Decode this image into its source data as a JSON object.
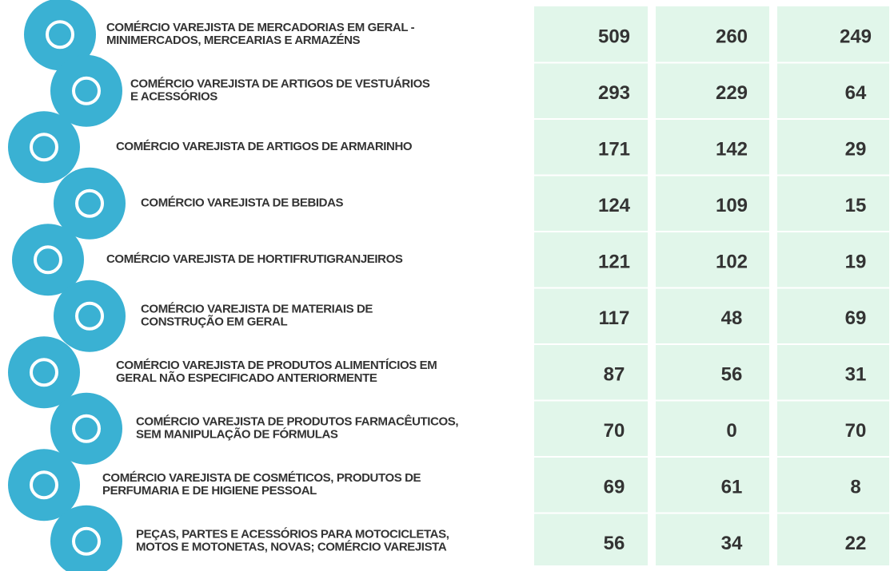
{
  "rows": [
    {
      "label": [
        "COMÉRCIO VAREJISTA DE MERCADORIAS EM GERAL -",
        "MINIMERCADOS, MERCEARIAS E ARMAZÉNS"
      ],
      "values": [
        509,
        260,
        249
      ]
    },
    {
      "label": [
        "COMÉRCIO VAREJISTA DE ARTIGOS DE VESTUÁRIOS",
        "E ACESSÓRIOS"
      ],
      "values": [
        293,
        229,
        64
      ]
    },
    {
      "label": [
        "COMÉRCIO VAREJISTA DE ARTIGOS DE ARMARINHO"
      ],
      "values": [
        171,
        142,
        29
      ]
    },
    {
      "label": [
        "COMÉRCIO VAREJISTA DE BEBIDAS"
      ],
      "values": [
        124,
        109,
        15
      ]
    },
    {
      "label": [
        "COMÉRCIO VAREJISTA DE HORTIFRUTIGRANJEIROS"
      ],
      "values": [
        121,
        102,
        19
      ]
    },
    {
      "label": [
        "COMÉRCIO VAREJISTA DE MATERIAIS DE",
        "CONSTRUÇÃO EM GERAL"
      ],
      "values": [
        117,
        48,
        69
      ]
    },
    {
      "label": [
        "COMÉRCIO VAREJISTA DE PRODUTOS ALIMENTÍCIOS EM",
        "GERAL NÃO ESPECIFICADO ANTERIORMENTE"
      ],
      "values": [
        87,
        56,
        31
      ]
    },
    {
      "label": [
        "COMÉRCIO VAREJISTA DE PRODUTOS FARMACÊUTICOS,",
        "SEM MANIPULAÇÃO DE FÓRMULAS"
      ],
      "values": [
        70,
        0,
        70
      ]
    },
    {
      "label": [
        "COMÉRCIO VAREJISTA DE COSMÉTICOS, PRODUTOS DE",
        "PERFUMARIA E DE HIGIENE PESSOAL"
      ],
      "values": [
        69,
        61,
        8
      ]
    },
    {
      "label": [
        "PEÇAS, PARTES E ACESSÓRIOS PARA MOTOCICLETAS,",
        "MOTOS E MOTONETAS, NOVAS; COMÉRCIO VAREJISTA"
      ],
      "values": [
        56,
        34,
        22
      ]
    }
  ]
}
